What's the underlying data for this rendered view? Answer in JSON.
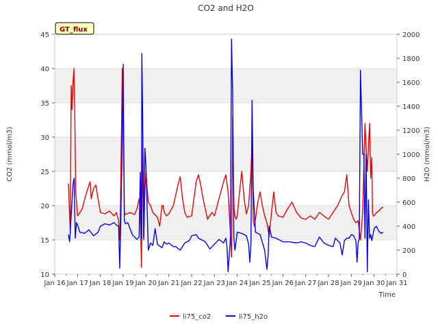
{
  "chart_data": {
    "type": "line",
    "title": "CO2 and H2O",
    "site_label": "GT_flux",
    "xlabel": "Time",
    "ylabel_left": "CO2 (mmol/m3)",
    "ylabel_right": "H2O (mmol/m3)",
    "xlim": [
      16,
      31
    ],
    "ylim_left": [
      10,
      45
    ],
    "ylim_right": [
      0,
      2000
    ],
    "x_ticks": [
      16,
      17,
      18,
      19,
      20,
      21,
      22,
      23,
      24,
      25,
      26,
      27,
      28,
      29,
      30,
      31
    ],
    "x_tick_labels": [
      "Jan 16",
      "Jan 17",
      "Jan 18",
      "Jan 19",
      "Jan 20",
      "Jan 21",
      "Jan 22",
      "Jan 23",
      "Jan 24",
      "Jan 25",
      "Jan 26",
      "Jan 27",
      "Jan 28",
      "Jan 29",
      "Jan 30",
      "Jan 31"
    ],
    "y_ticks_left": [
      10,
      15,
      20,
      25,
      30,
      35,
      40,
      45
    ],
    "y_ticks_right": [
      0,
      200,
      400,
      600,
      800,
      1000,
      1200,
      1400,
      1600,
      1800,
      2000
    ],
    "bands_left": [
      [
        15,
        20
      ],
      [
        25,
        30
      ],
      [
        35,
        40
      ]
    ],
    "legend": [
      "li75_co2",
      "li75_h2o"
    ],
    "series": [
      {
        "name": "li75_co2",
        "axis": "left",
        "color": "#ee0000",
        "x": [
          16.6,
          16.68,
          16.72,
          16.76,
          16.8,
          16.84,
          16.88,
          16.92,
          17.0,
          17.2,
          17.4,
          17.55,
          17.6,
          17.7,
          17.8,
          17.9,
          18.0,
          18.2,
          18.4,
          18.6,
          18.7,
          18.8,
          18.86,
          18.9,
          18.96,
          19.0,
          19.05,
          19.1,
          19.3,
          19.5,
          19.6,
          19.7,
          19.75,
          19.8,
          19.83,
          19.86,
          19.9,
          19.95,
          20.0,
          20.05,
          20.1,
          20.2,
          20.3,
          20.5,
          20.6,
          20.7,
          20.75,
          20.8,
          20.9,
          21.0,
          21.2,
          21.4,
          21.5,
          21.6,
          21.7,
          21.8,
          22.0,
          22.2,
          22.3,
          22.4,
          22.5,
          22.6,
          22.7,
          22.8,
          22.9,
          23.0,
          23.2,
          23.4,
          23.5,
          23.6,
          23.7,
          23.75,
          23.8,
          23.83,
          23.86,
          23.9,
          23.95,
          24.0,
          24.1,
          24.2,
          24.3,
          24.4,
          24.5,
          24.6,
          24.65,
          24.7,
          24.75,
          24.8,
          24.9,
          25.0,
          25.1,
          25.2,
          25.3,
          25.4,
          25.5,
          25.6,
          25.7,
          25.8,
          26.0,
          26.2,
          26.4,
          26.6,
          26.8,
          27.0,
          27.2,
          27.4,
          27.6,
          27.8,
          28.0,
          28.2,
          28.4,
          28.6,
          28.7,
          28.8,
          28.9,
          29.0,
          29.1,
          29.2,
          29.3,
          29.4,
          29.5,
          29.6,
          29.7,
          29.8,
          29.85,
          29.9,
          29.93,
          29.96,
          30.0,
          30.05,
          30.1,
          30.2,
          30.3,
          30.4
        ],
        "values": [
          23.2,
          16.0,
          37.5,
          34.0,
          38.0,
          40.0,
          33.0,
          22.0,
          18.5,
          19.5,
          22.0,
          23.5,
          21.0,
          22.5,
          23.0,
          21.0,
          19.0,
          18.8,
          19.2,
          18.5,
          19.0,
          17.8,
          15.0,
          25.0,
          40.0,
          34.0,
          19.0,
          18.7,
          19.0,
          18.7,
          19.5,
          21.0,
          19.0,
          11.0,
          21.0,
          29.5,
          15.0,
          22.0,
          25.0,
          22.5,
          20.5,
          20.0,
          19.0,
          18.3,
          17.0,
          20.0,
          20.0,
          19.0,
          18.5,
          18.8,
          20.0,
          23.0,
          24.2,
          21.0,
          19.0,
          18.3,
          18.5,
          23.5,
          24.5,
          23.0,
          21.0,
          19.5,
          18.0,
          18.6,
          19.0,
          18.5,
          21.0,
          23.5,
          24.5,
          22.0,
          16.0,
          12.5,
          33.0,
          25.0,
          19.5,
          18.5,
          18.0,
          18.5,
          22.0,
          25.0,
          21.0,
          18.8,
          20.0,
          25.0,
          29.0,
          18.0,
          17.0,
          18.0,
          20.5,
          22.0,
          20.0,
          18.5,
          17.5,
          15.5,
          19.0,
          22.0,
          19.0,
          18.5,
          18.3,
          19.5,
          20.5,
          19.0,
          18.2,
          18.0,
          18.5,
          18.0,
          19.0,
          18.5,
          18.0,
          19.0,
          20.0,
          21.5,
          22.0,
          24.5,
          20.0,
          19.0,
          18.0,
          17.5,
          17.8,
          15.0,
          19.0,
          32.0,
          25.0,
          32.0,
          24.0,
          27.0,
          19.0,
          18.5,
          18.5,
          18.7,
          19.0,
          19.2,
          19.6,
          19.8
        ],
        "reconstructed_data": true
      },
      {
        "name": "li75_h2o",
        "axis": "right",
        "color": "#0000ee",
        "x": [
          16.6,
          16.65,
          16.7,
          16.8,
          16.85,
          16.9,
          16.95,
          17.0,
          17.1,
          17.3,
          17.5,
          17.7,
          17.9,
          18.0,
          18.2,
          18.4,
          18.6,
          18.7,
          18.8,
          18.85,
          18.9,
          18.95,
          19.0,
          19.05,
          19.1,
          19.2,
          19.4,
          19.6,
          19.7,
          19.75,
          19.8,
          19.82,
          19.85,
          19.9,
          19.95,
          20.0,
          20.1,
          20.2,
          20.3,
          20.4,
          20.5,
          20.7,
          20.8,
          20.9,
          21.0,
          21.2,
          21.3,
          21.5,
          21.7,
          21.9,
          22.0,
          22.2,
          22.3,
          22.5,
          22.6,
          22.8,
          23.0,
          23.2,
          23.4,
          23.5,
          23.55,
          23.6,
          23.7,
          23.75,
          23.8,
          23.85,
          23.9,
          24.0,
          24.2,
          24.4,
          24.5,
          24.55,
          24.6,
          24.65,
          24.7,
          24.8,
          25.0,
          25.2,
          25.3,
          25.35,
          25.4,
          25.45,
          25.5,
          25.7,
          26.0,
          26.3,
          26.6,
          26.8,
          27.0,
          27.2,
          27.4,
          27.6,
          27.8,
          28.0,
          28.2,
          28.3,
          28.4,
          28.5,
          28.6,
          28.7,
          28.8,
          28.9,
          29.0,
          29.1,
          29.2,
          29.25,
          29.3,
          29.35,
          29.4,
          29.5,
          29.55,
          29.6,
          29.65,
          29.7,
          29.75,
          29.8,
          29.85,
          29.9,
          30.0,
          30.1,
          30.2,
          30.3,
          30.4
        ],
        "values": [
          330,
          270,
          420,
          750,
          800,
          300,
          430,
          410,
          350,
          340,
          370,
          320,
          350,
          400,
          420,
          410,
          430,
          410,
          400,
          50,
          500,
          1000,
          1750,
          450,
          420,
          430,
          330,
          290,
          310,
          850,
          300,
          1840,
          1400,
          300,
          1050,
          900,
          200,
          260,
          240,
          380,
          250,
          220,
          270,
          250,
          260,
          230,
          230,
          200,
          260,
          280,
          320,
          330,
          300,
          280,
          270,
          210,
          250,
          290,
          260,
          300,
          230,
          20,
          300,
          1960,
          1500,
          300,
          200,
          350,
          340,
          320,
          250,
          100,
          250,
          1450,
          700,
          350,
          330,
          200,
          40,
          150,
          400,
          360,
          310,
          300,
          270,
          270,
          260,
          270,
          260,
          240,
          230,
          310,
          260,
          240,
          230,
          300,
          280,
          260,
          160,
          280,
          300,
          300,
          330,
          320,
          280,
          100,
          260,
          300,
          1700,
          1000,
          1000,
          300,
          1000,
          20,
          620,
          300,
          330,
          280,
          380,
          400,
          360,
          340,
          350
        ],
        "reconstructed_data": true
      }
    ]
  }
}
